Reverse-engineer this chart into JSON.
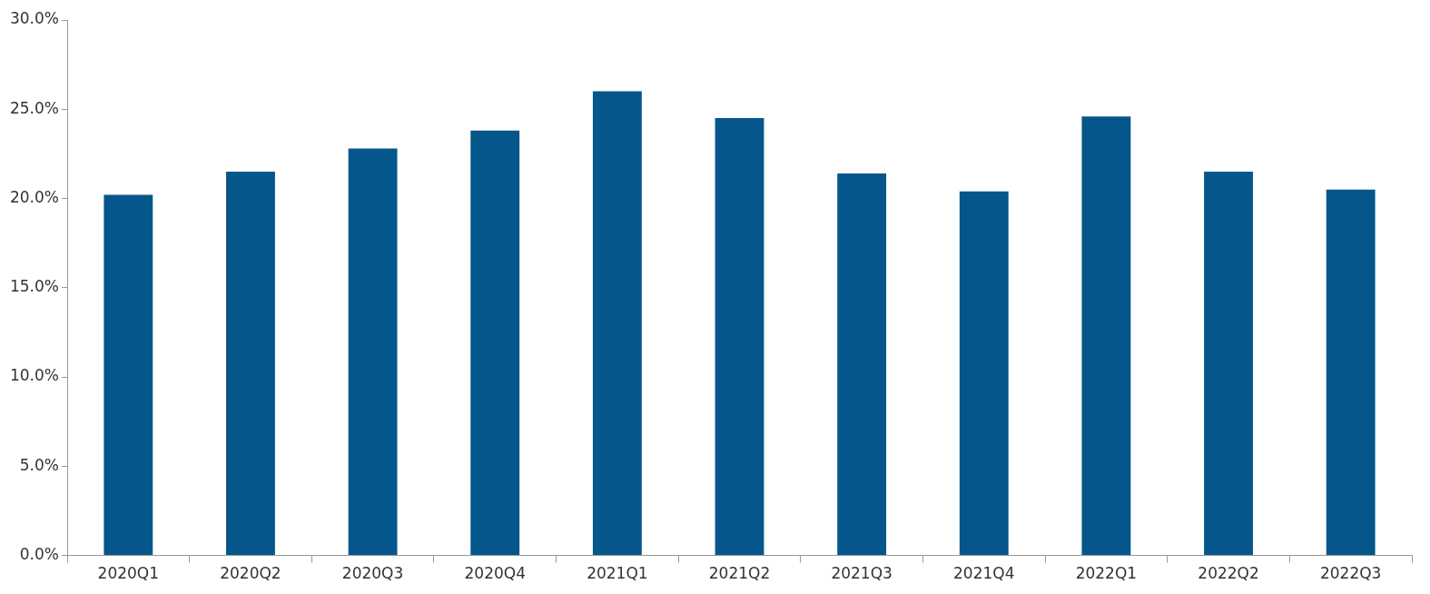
{
  "chart_data": {
    "type": "bar",
    "categories": [
      "2020Q1",
      "2020Q2",
      "2020Q3",
      "2020Q4",
      "2021Q1",
      "2021Q2",
      "2021Q3",
      "2021Q4",
      "2022Q1",
      "2022Q2",
      "2022Q3"
    ],
    "values": [
      20.2,
      21.5,
      22.8,
      23.8,
      26.0,
      24.5,
      21.4,
      20.4,
      24.6,
      21.5,
      20.5
    ],
    "color": "#05568a",
    "ylim": [
      0,
      30
    ],
    "yticks": [
      {
        "value": 0,
        "label": "0.0%"
      },
      {
        "value": 5,
        "label": "5.0%"
      },
      {
        "value": 10,
        "label": "10.0%"
      },
      {
        "value": 15,
        "label": "15.0%"
      },
      {
        "value": 20,
        "label": "20.0%"
      },
      {
        "value": 25,
        "label": "25.0%"
      },
      {
        "value": 30,
        "label": "30.0%"
      }
    ],
    "grid": false,
    "legend": false
  }
}
